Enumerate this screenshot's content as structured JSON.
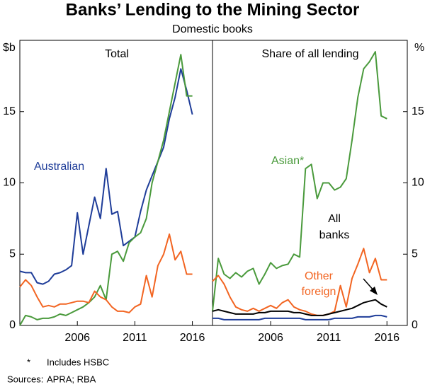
{
  "header": {
    "title": "Banks’ Lending to the Mining Sector",
    "subtitle": "Domestic books"
  },
  "chart_data": [
    {
      "type": "line",
      "title": "Total",
      "ylabel": "$b",
      "x": [
        2001,
        2001.5,
        2002,
        2002.5,
        2003,
        2003.5,
        2004,
        2004.5,
        2005,
        2005.5,
        2006,
        2006.5,
        2007,
        2007.5,
        2008,
        2008.5,
        2009,
        2009.5,
        2010,
        2010.5,
        2011,
        2011.5,
        2012,
        2012.5,
        2013,
        2013.5,
        2014,
        2014.5,
        2015,
        2015.5,
        2016
      ],
      "xlim": [
        2001,
        2017.75
      ],
      "xticks": [
        2006,
        2011,
        2016
      ],
      "ylim": [
        0,
        20
      ],
      "yticks": [
        0,
        5,
        10,
        15
      ],
      "series": [
        {
          "name": "Australian",
          "color": "#1f3d99",
          "values": [
            3.8,
            3.7,
            3.7,
            3.0,
            2.9,
            3.1,
            3.6,
            3.7,
            3.9,
            4.2,
            7.9,
            5.0,
            7.0,
            9.0,
            7.5,
            11.0,
            7.8,
            8.0,
            5.6,
            5.9,
            6.2,
            8.0,
            9.5,
            10.5,
            11.5,
            12.5,
            14.5,
            16.0,
            18.0,
            16.5,
            14.8
          ]
        },
        {
          "color": "#4a9a3c",
          "values": [
            0.0,
            0.7,
            0.6,
            0.4,
            0.5,
            0.5,
            0.6,
            0.8,
            0.7,
            0.9,
            1.1,
            1.3,
            1.6,
            2.0,
            2.8,
            1.8,
            5.0,
            5.2,
            4.5,
            5.8,
            6.2,
            6.5,
            7.5,
            10.0,
            11.5,
            13.0,
            15.0,
            17.0,
            19.0,
            16.1,
            16.1
          ]
        },
        {
          "color": "#f26522",
          "values": [
            2.7,
            3.2,
            2.8,
            2.0,
            1.3,
            1.4,
            1.3,
            1.5,
            1.5,
            1.6,
            1.7,
            1.7,
            1.6,
            2.4,
            2.0,
            1.8,
            1.3,
            1.0,
            1.0,
            0.9,
            1.3,
            1.5,
            3.5,
            2.0,
            4.2,
            5.0,
            6.4,
            4.6,
            5.2,
            3.6,
            3.6
          ]
        }
      ]
    },
    {
      "type": "line",
      "title": "Share of all lending",
      "ylabel": "%",
      "x": [
        2001,
        2001.5,
        2002,
        2002.5,
        2003,
        2003.5,
        2004,
        2004.5,
        2005,
        2005.5,
        2006,
        2006.5,
        2007,
        2007.5,
        2008,
        2008.5,
        2009,
        2009.5,
        2010,
        2010.5,
        2011,
        2011.5,
        2012,
        2012.5,
        2013,
        2013.5,
        2014,
        2014.5,
        2015,
        2015.5,
        2016
      ],
      "xlim": [
        2001,
        2017.75
      ],
      "xticks": [
        2006,
        2011,
        2016
      ],
      "ylim": [
        0,
        20
      ],
      "yticks": [
        0,
        5,
        10,
        15
      ],
      "series": [
        {
          "name": "Asian*",
          "color": "#4a9a3c",
          "values": [
            1.0,
            4.7,
            3.6,
            3.3,
            3.7,
            3.4,
            3.8,
            4.0,
            2.9,
            3.6,
            4.4,
            4.0,
            4.2,
            4.3,
            5.0,
            4.8,
            11.0,
            11.3,
            8.9,
            10.0,
            10.0,
            9.5,
            9.7,
            10.3,
            13.0,
            16.0,
            18.0,
            18.5,
            19.2,
            14.7,
            14.5
          ]
        },
        {
          "name": "Other foreign",
          "color": "#f26522",
          "values": [
            3.1,
            3.5,
            2.9,
            2.0,
            1.3,
            1.1,
            1.0,
            1.2,
            1.0,
            1.2,
            1.4,
            1.2,
            1.6,
            1.8,
            1.3,
            1.1,
            1.0,
            0.8,
            0.7,
            0.7,
            0.8,
            1.0,
            2.8,
            1.3,
            3.3,
            4.3,
            5.4,
            3.7,
            4.7,
            3.2,
            3.2
          ]
        },
        {
          "name": "All banks",
          "color": "#000000",
          "values": [
            1.0,
            1.1,
            1.0,
            0.9,
            0.8,
            0.8,
            0.8,
            0.8,
            0.9,
            0.9,
            1.0,
            1.0,
            1.0,
            1.0,
            0.9,
            0.9,
            0.8,
            0.7,
            0.7,
            0.7,
            0.8,
            0.9,
            1.0,
            1.1,
            1.2,
            1.4,
            1.6,
            1.7,
            1.8,
            1.5,
            1.3
          ]
        },
        {
          "color": "#1f3d99",
          "values": [
            0.5,
            0.5,
            0.4,
            0.4,
            0.4,
            0.4,
            0.4,
            0.4,
            0.4,
            0.5,
            0.5,
            0.5,
            0.5,
            0.5,
            0.5,
            0.5,
            0.4,
            0.4,
            0.4,
            0.4,
            0.4,
            0.5,
            0.5,
            0.5,
            0.5,
            0.6,
            0.6,
            0.6,
            0.7,
            0.7,
            0.6
          ]
        }
      ]
    }
  ],
  "footer": {
    "note_marker": "*",
    "note": "Includes HSBC",
    "sources_label": "Sources:",
    "sources": "APRA; RBA"
  }
}
